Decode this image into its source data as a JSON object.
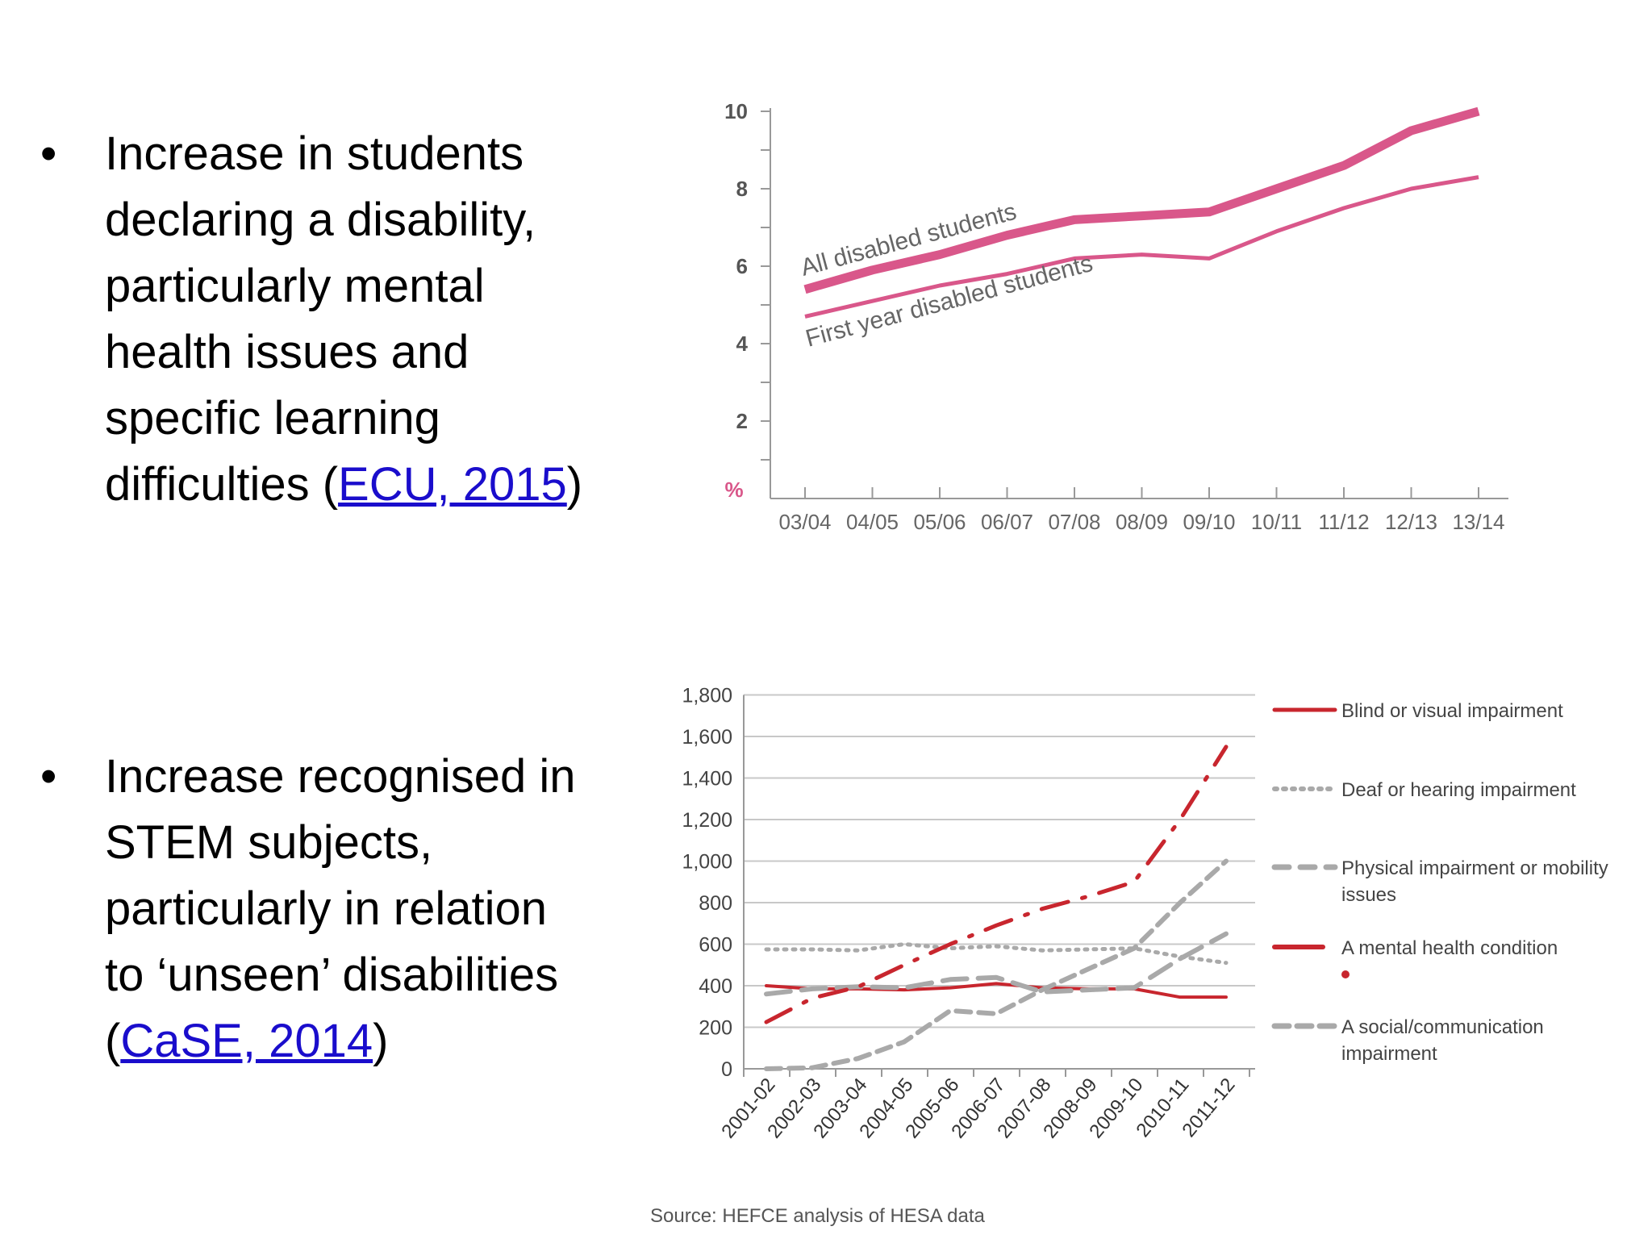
{
  "bullets": [
    {
      "marker": "•",
      "lines": [
        "Increase in students",
        "declaring a disability,",
        "particularly mental",
        "health issues and",
        "specific learning"
      ],
      "last_prefix": "difficulties (",
      "link": "ECU, 2015",
      "last_suffix": ")"
    },
    {
      "marker": "•",
      "lines": [
        "Increase recognised in",
        "STEM subjects,",
        "particularly in relation",
        "to ‘unseen’ disabilities"
      ],
      "last_prefix": "(",
      "link": "CaSE, 2014",
      "last_suffix": ")"
    }
  ],
  "chart_data": [
    {
      "type": "line",
      "title": "",
      "xlabel": "",
      "ylabel": "%",
      "categories": [
        "03/04",
        "04/05",
        "05/06",
        "06/07",
        "07/08",
        "08/09",
        "09/10",
        "10/11",
        "11/12",
        "12/13",
        "13/14"
      ],
      "ylim": [
        0,
        10
      ],
      "yticks": [
        "2",
        "4",
        "6",
        "8",
        "10"
      ],
      "color": "#d9578a",
      "series": [
        {
          "name": "All disabled students",
          "values": [
            5.4,
            5.9,
            6.3,
            6.8,
            7.2,
            7.3,
            7.4,
            8.0,
            8.6,
            9.5,
            10.0
          ]
        },
        {
          "name": "First year disabled students",
          "values": [
            4.7,
            5.1,
            5.5,
            5.8,
            6.2,
            6.3,
            6.2,
            6.9,
            7.5,
            8.0,
            8.3
          ]
        }
      ]
    },
    {
      "type": "line",
      "title": "",
      "xlabel": "",
      "ylabel": "",
      "categories": [
        "2001-02",
        "2002-03",
        "2003-04",
        "2004-05",
        "2005-06",
        "2006-07",
        "2007-08",
        "2008-09",
        "2009-10",
        "2010-11",
        "2011-12"
      ],
      "ylim": [
        0,
        1800
      ],
      "yticks": [
        "0",
        "200",
        "400",
        "600",
        "800",
        "1,000",
        "1,200",
        "1,400",
        "1,600",
        "1,800"
      ],
      "legend_position": "right",
      "series": [
        {
          "name": "Blind or visual impairment",
          "color": "#c8262e",
          "style": "solid",
          "values": [
            400,
            385,
            385,
            380,
            390,
            410,
            390,
            385,
            385,
            345,
            345
          ]
        },
        {
          "name": "Deaf or hearing impairment",
          "color": "#a9a9a9",
          "style": "dotted",
          "values": [
            575,
            575,
            570,
            600,
            580,
            590,
            570,
            575,
            580,
            540,
            510
          ]
        },
        {
          "name": "Physical impairment or mobility issues",
          "color": "#a9a9a9",
          "style": "longdash",
          "values": [
            360,
            385,
            395,
            390,
            430,
            440,
            370,
            380,
            390,
            530,
            650
          ]
        },
        {
          "name": "A mental health condition",
          "color": "#c8262e",
          "style": "dashdot",
          "values": [
            225,
            340,
            395,
            500,
            600,
            690,
            770,
            830,
            900,
            1200,
            1550
          ]
        },
        {
          "name": "A social/communication impairment",
          "color": "#a9a9a9",
          "style": "dashed",
          "values": [
            0,
            5,
            50,
            130,
            280,
            265,
            380,
            480,
            580,
            800,
            1000
          ]
        }
      ],
      "source": "Source: HEFCE analysis of HESA data"
    }
  ]
}
